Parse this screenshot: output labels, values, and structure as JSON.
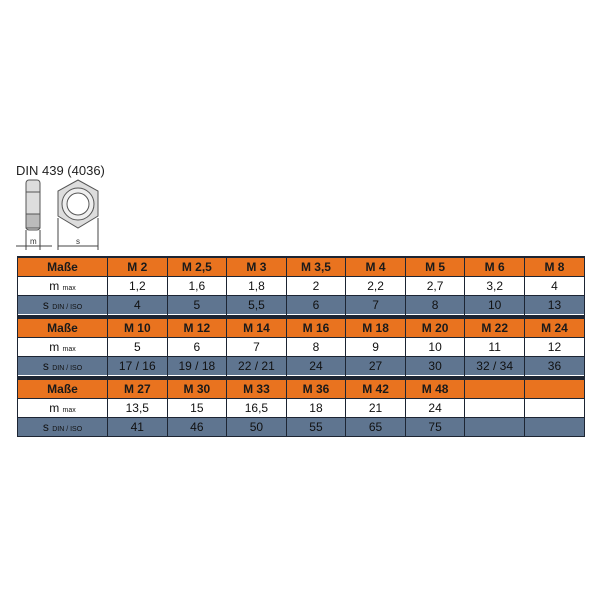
{
  "title": "DIN 439 (4036)",
  "drawing": {
    "dim_m": "m",
    "dim_s": "s"
  },
  "labels": {
    "header": "Maße",
    "m_main": "m",
    "m_sub": "max",
    "s_main": "s",
    "s_sub": "DIN / ISO"
  },
  "colors": {
    "header": "#e9731f",
    "s_row": "#5f7590",
    "border": "#1d2533"
  },
  "blocks": [
    {
      "sizes": [
        "M 2",
        "M 2,5",
        "M 3",
        "M 3,5",
        "M 4",
        "M 5",
        "M 6",
        "M 8"
      ],
      "m": [
        "1,2",
        "1,6",
        "1,8",
        "2",
        "2,2",
        "2,7",
        "3,2",
        "4"
      ],
      "s": [
        "4",
        "5",
        "5,5",
        "6",
        "7",
        "8",
        "10",
        "13"
      ]
    },
    {
      "sizes": [
        "M 10",
        "M 12",
        "M 14",
        "M 16",
        "M 18",
        "M 20",
        "M 22",
        "M 24"
      ],
      "m": [
        "5",
        "6",
        "7",
        "8",
        "9",
        "10",
        "11",
        "12"
      ],
      "s": [
        "17 / 16",
        "19 / 18",
        "22 / 21",
        "24",
        "27",
        "30",
        "32 / 34",
        "36"
      ]
    },
    {
      "sizes": [
        "M 27",
        "M 30",
        "M 33",
        "M 36",
        "M 42",
        "M 48",
        "",
        ""
      ],
      "m": [
        "13,5",
        "15",
        "16,5",
        "18",
        "21",
        "24",
        "",
        ""
      ],
      "s": [
        "41",
        "46",
        "50",
        "55",
        "65",
        "75",
        "",
        ""
      ]
    }
  ]
}
